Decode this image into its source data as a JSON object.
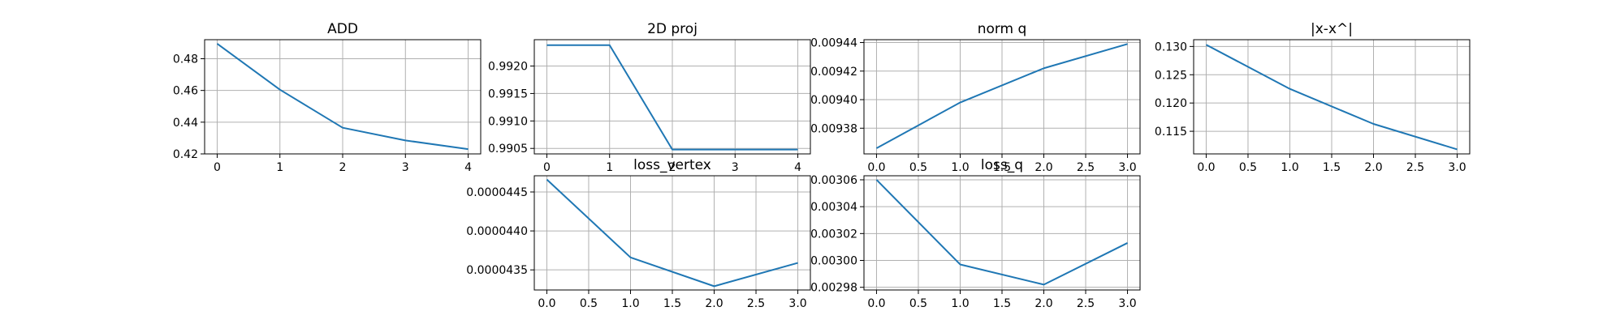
{
  "colors": {
    "series": "#1f77b4"
  },
  "chart_data": [
    {
      "type": "line",
      "title": "ADD",
      "x": [
        0,
        1,
        2,
        3,
        4
      ],
      "series": [
        {
          "values": [
            0.4895,
            0.4605,
            0.4365,
            0.4285,
            0.423
          ]
        }
      ],
      "xlim": [
        -0.2,
        4.2
      ],
      "ylim": [
        0.42,
        0.492
      ],
      "xticks": [
        0,
        1,
        2,
        3,
        4
      ],
      "xtick_labels": [
        "0",
        "1",
        "2",
        "3",
        "4"
      ],
      "yticks": [
        0.42,
        0.44,
        0.46,
        0.48
      ],
      "ytick_labels": [
        "0.42",
        "0.44",
        "0.46",
        "0.48"
      ],
      "grid": true
    },
    {
      "type": "line",
      "title": "2D proj",
      "x": [
        0,
        1,
        2,
        3,
        4
      ],
      "series": [
        {
          "values": [
            0.99238,
            0.99238,
            0.99048,
            0.99048,
            0.99048
          ]
        }
      ],
      "xlim": [
        -0.2,
        4.2
      ],
      "ylim": [
        0.9904,
        0.99248
      ],
      "xticks": [
        0,
        1,
        2,
        3,
        4
      ],
      "xtick_labels": [
        "0",
        "1",
        "2",
        "3",
        "4"
      ],
      "yticks": [
        0.9905,
        0.991,
        0.9915,
        0.992
      ],
      "ytick_labels": [
        "0.9905",
        "0.9910",
        "0.9915",
        "0.9920"
      ],
      "grid": true
    },
    {
      "type": "line",
      "title": "norm q",
      "x": [
        0,
        1,
        2,
        3
      ],
      "series": [
        {
          "values": [
            0.009366,
            0.009398,
            0.009422,
            0.009439
          ]
        }
      ],
      "xlim": [
        -0.15,
        3.15
      ],
      "ylim": [
        0.009362,
        0.009442
      ],
      "xticks": [
        0,
        0.5,
        1,
        1.5,
        2,
        2.5,
        3
      ],
      "xtick_labels": [
        "0.0",
        "0.5",
        "1.0",
        "1.5",
        "2.0",
        "2.5",
        "3.0"
      ],
      "yticks": [
        0.00938,
        0.0094,
        0.00942,
        0.00944
      ],
      "ytick_labels": [
        "0.00938",
        "0.00940",
        "0.00942",
        "0.00944"
      ],
      "grid": true
    },
    {
      "type": "line",
      "title": "|x-x^|",
      "x": [
        0,
        1,
        2,
        3
      ],
      "series": [
        {
          "values": [
            0.1303,
            0.1225,
            0.1163,
            0.1118
          ]
        }
      ],
      "xlim": [
        -0.15,
        3.15
      ],
      "ylim": [
        0.111,
        0.1312
      ],
      "xticks": [
        0,
        0.5,
        1,
        1.5,
        2,
        2.5,
        3
      ],
      "xtick_labels": [
        "0.0",
        "0.5",
        "1.0",
        "1.5",
        "2.0",
        "2.5",
        "3.0"
      ],
      "yticks": [
        0.115,
        0.12,
        0.125,
        0.13
      ],
      "ytick_labels": [
        "0.115",
        "0.120",
        "0.125",
        "0.130"
      ],
      "grid": true
    },
    {
      "type": "line",
      "title": "loss_vertex",
      "x": [
        0,
        1,
        2,
        3
      ],
      "series": [
        {
          "values": [
            4.466e-05,
            4.366e-05,
            4.329e-05,
            4.359e-05
          ]
        }
      ],
      "xlim": [
        -0.15,
        3.15
      ],
      "ylim": [
        4.3242e-05,
        4.4708e-05
      ],
      "xticks": [
        0,
        0.5,
        1,
        1.5,
        2,
        2.5,
        3
      ],
      "xtick_labels": [
        "0.0",
        "0.5",
        "1.0",
        "1.5",
        "2.0",
        "2.5",
        "3.0"
      ],
      "yticks": [
        4.35e-05,
        4.4e-05,
        4.45e-05
      ],
      "ytick_labels": [
        "0.0000435",
        "0.0000440",
        "0.0000445"
      ],
      "grid": true
    },
    {
      "type": "line",
      "title": "loss_q",
      "x": [
        0,
        1,
        2,
        3
      ],
      "series": [
        {
          "values": [
            0.00306,
            0.002997,
            0.002982,
            0.003013
          ]
        }
      ],
      "xlim": [
        -0.15,
        3.15
      ],
      "ylim": [
        0.002978,
        0.003063
      ],
      "xticks": [
        0,
        0.5,
        1,
        1.5,
        2,
        2.5,
        3
      ],
      "xtick_labels": [
        "0.0",
        "0.5",
        "1.0",
        "1.5",
        "2.0",
        "2.5",
        "3.0"
      ],
      "yticks": [
        0.00298,
        0.003,
        0.00302,
        0.00304,
        0.00306
      ],
      "ytick_labels": [
        "0.00298",
        "0.00300",
        "0.00302",
        "0.00304",
        "0.00306"
      ],
      "grid": true
    }
  ]
}
